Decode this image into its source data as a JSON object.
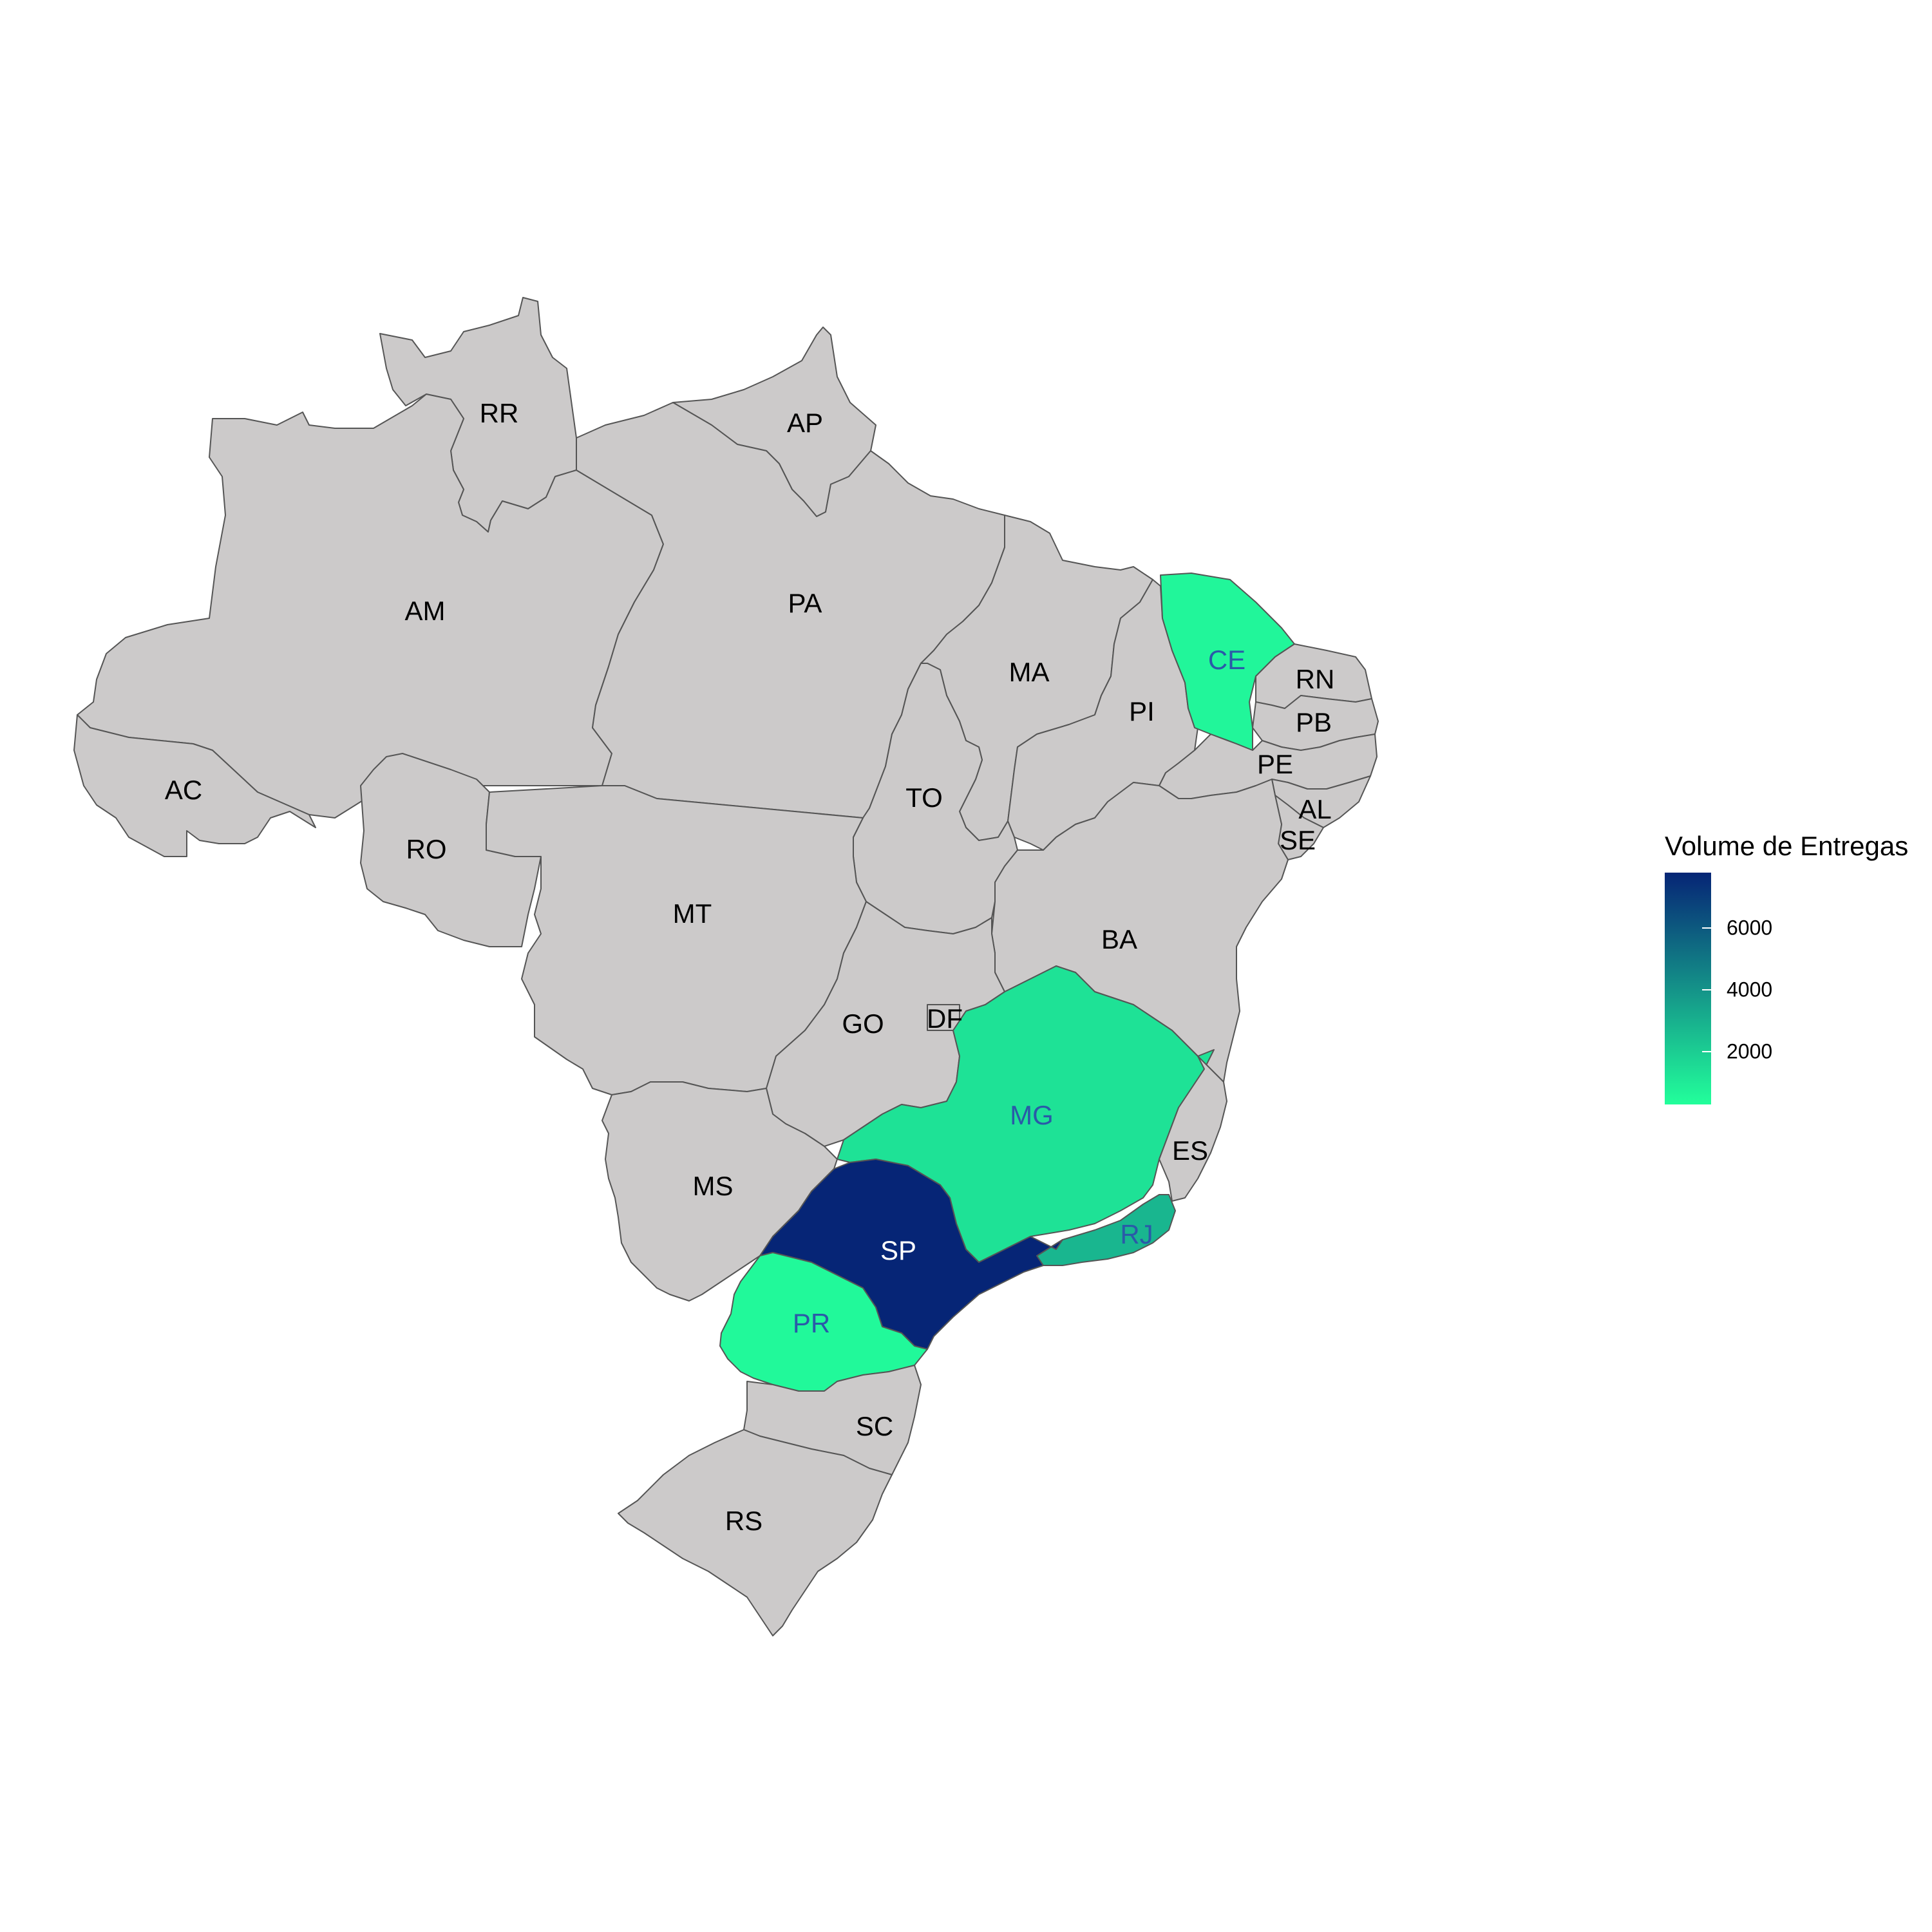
{
  "map": {
    "states": [
      {
        "code": "RR",
        "label": "RR",
        "value": null
      },
      {
        "code": "AP",
        "label": "AP",
        "value": null
      },
      {
        "code": "AM",
        "label": "AM",
        "value": null
      },
      {
        "code": "PA",
        "label": "PA",
        "value": null
      },
      {
        "code": "MA",
        "label": "MA",
        "value": null
      },
      {
        "code": "CE",
        "label": "CE",
        "value": 600
      },
      {
        "code": "RN",
        "label": "RN",
        "value": null
      },
      {
        "code": "PI",
        "label": "PI",
        "value": null
      },
      {
        "code": "PB",
        "label": "PB",
        "value": null
      },
      {
        "code": "PE",
        "label": "PE",
        "value": null
      },
      {
        "code": "AC",
        "label": "AC",
        "value": null
      },
      {
        "code": "TO",
        "label": "TO",
        "value": null
      },
      {
        "code": "AL",
        "label": "AL",
        "value": null
      },
      {
        "code": "RO",
        "label": "RO",
        "value": null
      },
      {
        "code": "SE",
        "label": "SE",
        "value": null
      },
      {
        "code": "MT",
        "label": "MT",
        "value": null
      },
      {
        "code": "BA",
        "label": "BA",
        "value": null
      },
      {
        "code": "GO",
        "label": "GO",
        "value": null
      },
      {
        "code": "DF",
        "label": "DF",
        "value": null
      },
      {
        "code": "MG",
        "label": "MG",
        "value": 1300
      },
      {
        "code": "ES",
        "label": "ES",
        "value": null
      },
      {
        "code": "MS",
        "label": "MS",
        "value": null
      },
      {
        "code": "RJ",
        "label": "RJ",
        "value": 2800
      },
      {
        "code": "SP",
        "label": "SP",
        "value": 7800
      },
      {
        "code": "PR",
        "label": "PR",
        "value": 500
      },
      {
        "code": "SC",
        "label": "SC",
        "value": null
      },
      {
        "code": "RS",
        "label": "RS",
        "value": null
      }
    ],
    "na_color": "#CCCACA",
    "color_low": "#22FF9B",
    "color_high": "#062576"
  },
  "legend": {
    "title": "Volume de Entregas",
    "min": 300,
    "max": 7800,
    "ticks": [
      {
        "value": 6000,
        "label": "6000"
      },
      {
        "value": 4000,
        "label": "4000"
      },
      {
        "value": 2000,
        "label": "2000"
      }
    ]
  }
}
